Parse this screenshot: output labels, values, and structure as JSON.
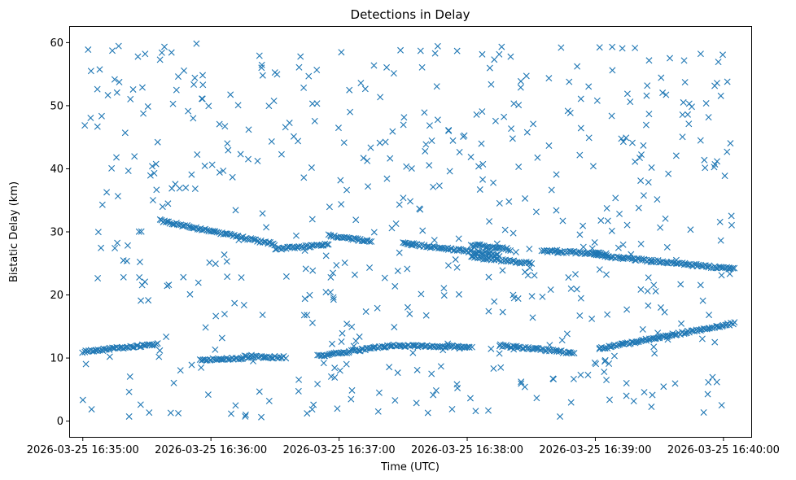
{
  "chart_data": {
    "type": "scatter",
    "title": "Detections in Delay",
    "xlabel": "Time (UTC)",
    "ylabel": "Bistatic Delay (km)",
    "marker": "x",
    "color": "#1f77b4",
    "grid": false,
    "legend": "none",
    "x_range": [
      "2026-03-25 16:34:54",
      "2026-03-25 16:40:13"
    ],
    "xlim_seconds": [
      -6,
      313
    ],
    "ylim": [
      -2.5,
      62.5
    ],
    "x_ticks": [
      {
        "t": 0,
        "label": "2026-03-25 16:35:00"
      },
      {
        "t": 60,
        "label": "2026-03-25 16:36:00"
      },
      {
        "t": 120,
        "label": "2026-03-25 16:37:00"
      },
      {
        "t": 180,
        "label": "2026-03-25 16:38:00"
      },
      {
        "t": 240,
        "label": "2026-03-25 16:39:00"
      },
      {
        "t": 300,
        "label": "2026-03-25 16:40:00"
      }
    ],
    "y_ticks": [
      0,
      10,
      20,
      30,
      40,
      50,
      60
    ],
    "x_span_seconds": [
      0,
      305
    ],
    "series": [
      {
        "kind": "track",
        "segments": [
          {
            "start": [
              0,
              11.0
            ],
            "end": [
              35,
              12.2
            ]
          },
          {
            "start": [
              55,
              9.7
            ],
            "end": [
              75,
              10.0
            ]
          },
          {
            "start": [
              75,
              10.2
            ],
            "end": [
              95,
              10.1
            ]
          },
          {
            "start": [
              110,
              10.3
            ],
            "end": [
              145,
              12.0
            ]
          },
          {
            "start": [
              145,
              12.0
            ],
            "end": [
              182,
              11.8
            ]
          },
          {
            "start": [
              195,
              12.0
            ],
            "end": [
              230,
              10.8
            ]
          },
          {
            "start": [
              242,
              11.5
            ],
            "end": [
              305,
              15.5
            ]
          },
          {
            "start": [
              36,
              31.8
            ],
            "end": [
              90,
              28.0
            ]
          },
          {
            "start": [
              90,
              27.3
            ],
            "end": [
              115,
              28.0
            ]
          },
          {
            "start": [
              115,
              29.5
            ],
            "end": [
              135,
              28.4
            ]
          },
          {
            "start": [
              150,
              28.2
            ],
            "end": [
              195,
              26.3
            ]
          },
          {
            "start": [
              182,
              28.0
            ],
            "end": [
              200,
              27.2
            ]
          },
          {
            "start": [
              182,
              26.0
            ],
            "end": [
              210,
              25.0
            ]
          },
          {
            "start": [
              215,
              27.0
            ],
            "end": [
              245,
              26.5
            ]
          },
          {
            "start": [
              240,
              26.3
            ],
            "end": [
              305,
              24.1
            ]
          }
        ]
      },
      {
        "kind": "clutter",
        "count": 560,
        "x_range": [
          0,
          305
        ],
        "y_range": [
          0.5,
          60
        ]
      }
    ]
  }
}
